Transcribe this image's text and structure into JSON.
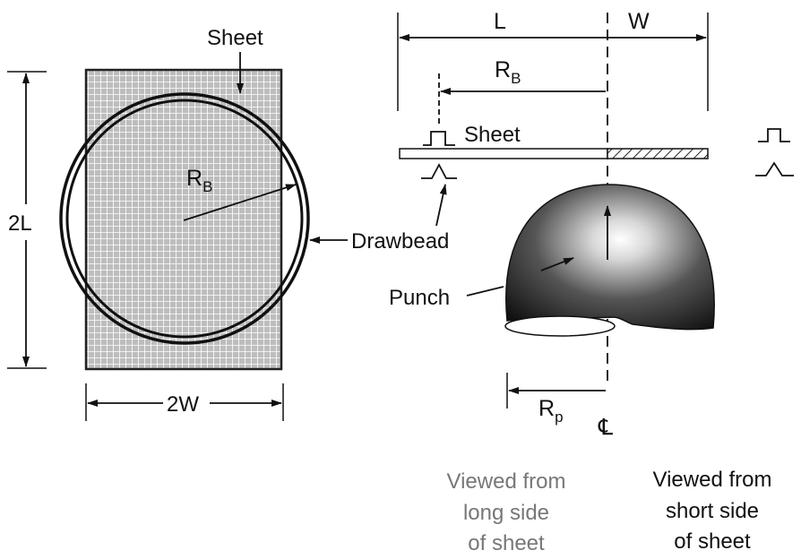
{
  "left": {
    "sheet_label": "Sheet",
    "rb_label": "R",
    "rb_sub": "B",
    "height_label": "2L",
    "width_label": "2W",
    "drawbead_label": "Drawbead"
  },
  "right": {
    "l_label": "L",
    "w_label": "W",
    "rb_label": "R",
    "rb_sub": "B",
    "sheet_label": "Sheet",
    "punch_label": "Punch",
    "rp_label": "R",
    "rp_sub": "p",
    "centerline_symbol": "℄"
  },
  "captions": {
    "long_side": [
      "Viewed from",
      "long side",
      "of sheet"
    ],
    "short_side": [
      "Viewed from",
      "short side",
      "of sheet"
    ]
  }
}
